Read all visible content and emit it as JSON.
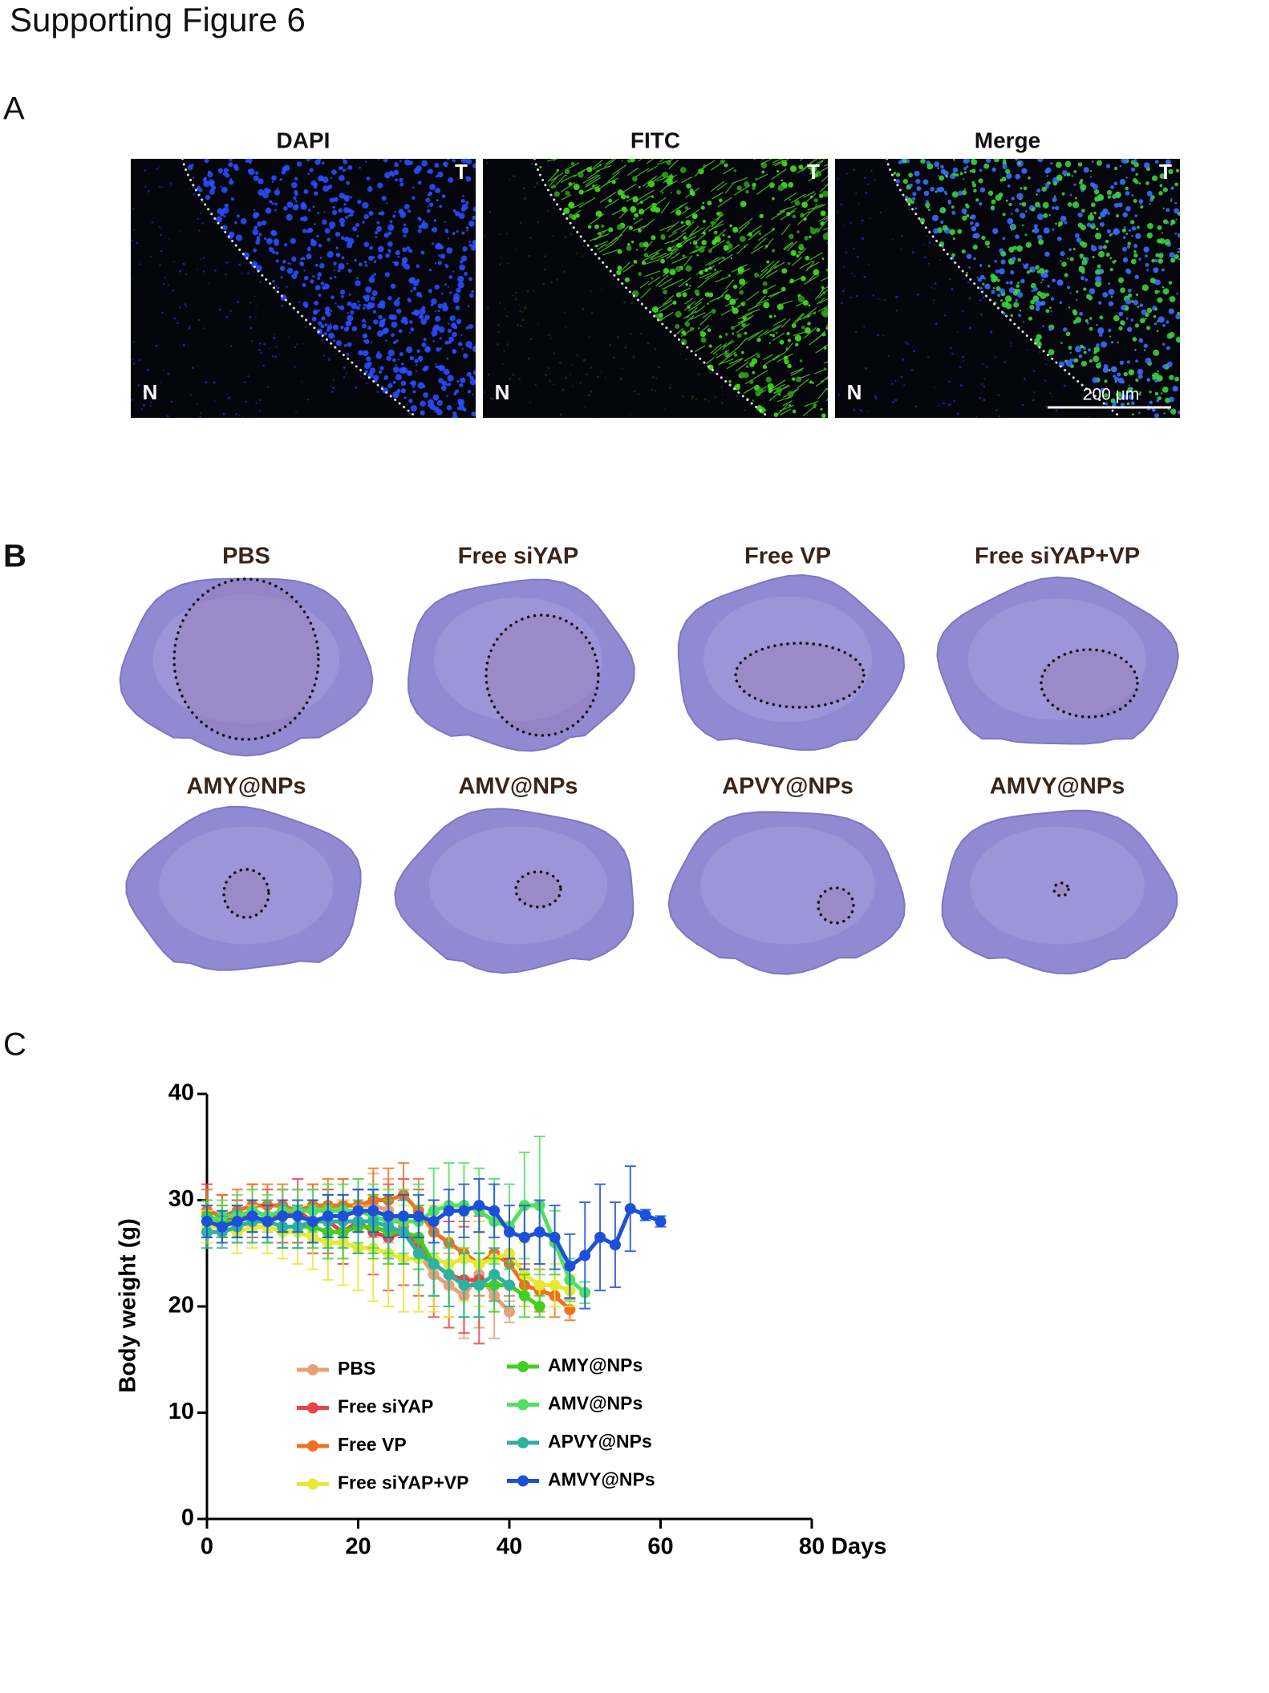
{
  "title": "Supporting Figure 6",
  "panel_labels": [
    "A",
    "B",
    "C"
  ],
  "panel_a": {
    "images": [
      {
        "title": "DAPI",
        "top_label": "T",
        "bottom_label": "N"
      },
      {
        "title": "FITC",
        "top_label": "T",
        "bottom_label": "N"
      },
      {
        "title": "Merge",
        "top_label": "T",
        "bottom_label": "N"
      }
    ],
    "scale_bar": "200 μm"
  },
  "panel_b": {
    "sections": [
      "PBS",
      "Free siYAP",
      "Free VP",
      "Free siYAP+VP",
      "AMY@NPs",
      "AMV@NPs",
      "APVY@NPs",
      "AMVY@NPs"
    ]
  },
  "chart_data": {
    "type": "line",
    "ylabel": "Body weight (g)",
    "xlabel": "Days",
    "xlim": [
      0,
      80
    ],
    "ylim": [
      0,
      40
    ],
    "xticks": [
      0,
      20,
      40,
      60,
      80
    ],
    "yticks": [
      0,
      10,
      20,
      30,
      40
    ],
    "series": [
      {
        "name": "PBS",
        "color": "#e8a07a",
        "x": [
          0,
          2,
          4,
          6,
          8,
          10,
          12,
          14,
          16,
          18,
          20,
          22,
          24,
          26,
          28,
          30,
          32,
          34,
          36,
          38,
          40
        ],
        "values": [
          28,
          28,
          28.5,
          29,
          28.5,
          29,
          29,
          29.5,
          29,
          29.5,
          29.5,
          29.5,
          29,
          27.5,
          25,
          23,
          22,
          21,
          23,
          21,
          19.5
        ],
        "errors": [
          1.5,
          1.5,
          1.5,
          2,
          1.5,
          2,
          2,
          2,
          2,
          2.5,
          2.5,
          3,
          3,
          3,
          3,
          3,
          3,
          4,
          5,
          4,
          1
        ]
      },
      {
        "name": "Free siYAP",
        "color": "#e8424a",
        "x": [
          0,
          2,
          4,
          6,
          8,
          10,
          12,
          14,
          16,
          18,
          20,
          22,
          24,
          26,
          28,
          30,
          32,
          34,
          36
        ],
        "values": [
          29,
          28.5,
          28,
          29,
          28.5,
          28.5,
          29,
          28,
          28,
          27,
          28,
          27,
          26.5,
          27,
          26,
          24,
          23,
          22.5,
          22.5
        ],
        "errors": [
          2.5,
          2,
          2,
          2.5,
          2.5,
          2.5,
          3,
          3,
          3,
          3,
          3,
          4,
          5,
          5,
          5,
          5,
          5,
          5,
          6
        ]
      },
      {
        "name": "Free VP",
        "color": "#f07020",
        "x": [
          0,
          2,
          4,
          6,
          8,
          10,
          12,
          14,
          16,
          18,
          20,
          22,
          24,
          26,
          28,
          30,
          32,
          34,
          36,
          38,
          40,
          42,
          44,
          46,
          48
        ],
        "values": [
          29,
          28.5,
          29,
          29.5,
          29.5,
          29.5,
          29,
          29.5,
          29.5,
          29.5,
          29.5,
          30,
          30,
          30.5,
          29,
          27,
          26,
          25,
          24,
          25,
          24,
          22,
          21.5,
          21,
          19.7
        ],
        "errors": [
          2,
          2,
          2,
          2,
          2,
          2,
          2,
          2,
          2.5,
          2.5,
          2.5,
          3,
          3,
          3,
          3,
          3,
          3,
          3,
          3,
          3,
          3,
          2,
          2,
          2,
          1
        ]
      },
      {
        "name": "Free siYAP+VP",
        "color": "#e8e830",
        "x": [
          0,
          2,
          4,
          6,
          8,
          10,
          12,
          14,
          16,
          18,
          20,
          22,
          24,
          26,
          28,
          30,
          32,
          34,
          36,
          38,
          40,
          42,
          44,
          46,
          48
        ],
        "values": [
          27.5,
          27.5,
          27,
          27.5,
          27.5,
          27,
          27,
          26.5,
          26,
          26,
          25.5,
          25.5,
          25,
          24.5,
          24.5,
          24.5,
          24,
          24.5,
          24,
          24.5,
          25,
          23,
          22,
          22,
          21.5
        ],
        "errors": [
          1.5,
          1.5,
          2,
          2,
          2.5,
          2.5,
          3,
          3,
          3.5,
          4,
          4,
          5,
          5,
          5,
          5,
          5,
          5,
          4,
          4,
          4,
          3,
          3,
          2,
          2,
          1.5
        ]
      },
      {
        "name": "AMY@NPs",
        "color": "#40d020",
        "x": [
          0,
          2,
          4,
          6,
          8,
          10,
          12,
          14,
          16,
          18,
          20,
          22,
          24,
          26,
          28,
          30,
          32,
          34,
          36,
          38,
          40,
          42,
          44
        ],
        "values": [
          28.5,
          28,
          28,
          28.5,
          28,
          27.5,
          27.5,
          27.5,
          27,
          27,
          27.5,
          27.5,
          27,
          27,
          26.5,
          24,
          23,
          22,
          22,
          22,
          22,
          21,
          20
        ],
        "errors": [
          1.5,
          1.5,
          1.5,
          1.5,
          2,
          2,
          2,
          2,
          2.5,
          2.5,
          2.5,
          3,
          3,
          3,
          3,
          3,
          3,
          3,
          3,
          2.5,
          2,
          2,
          1
        ]
      },
      {
        "name": "AMV@NPs",
        "color": "#50e060",
        "x": [
          0,
          2,
          4,
          6,
          8,
          10,
          12,
          14,
          16,
          18,
          20,
          22,
          24,
          26,
          28,
          30,
          32,
          34,
          36,
          38,
          40,
          42,
          44,
          46,
          48,
          50
        ],
        "values": [
          28,
          28.5,
          28.5,
          29,
          28.5,
          29,
          29,
          29,
          29,
          29,
          29,
          28.5,
          28,
          28,
          28,
          29,
          29.5,
          29.5,
          29,
          28,
          27.5,
          29.5,
          29.5,
          26,
          22.5,
          21.3
        ],
        "errors": [
          1.5,
          1.5,
          2,
          2,
          2,
          2,
          2,
          2,
          2.5,
          2.5,
          3,
          3,
          3,
          3,
          3.5,
          4,
          4,
          4,
          4,
          4,
          4,
          5,
          6.5,
          3,
          2,
          1
        ]
      },
      {
        "name": "APVY@NPs",
        "color": "#30b0a0",
        "x": [
          0,
          2,
          4,
          6,
          8,
          10,
          12,
          14,
          16,
          18,
          20,
          22,
          24,
          26,
          28,
          30,
          32,
          34,
          36,
          38,
          40
        ],
        "values": [
          27,
          27,
          27.5,
          28,
          28,
          27.5,
          27.5,
          28,
          28,
          28,
          28,
          28,
          27.5,
          27,
          25,
          24,
          23,
          22,
          22,
          23,
          22
        ],
        "errors": [
          1.5,
          1.5,
          1.5,
          2,
          2,
          2,
          2,
          2,
          2.5,
          2.5,
          3,
          3,
          3,
          3,
          3,
          3,
          3,
          3,
          3,
          2.5,
          2
        ]
      },
      {
        "name": "AMVY@NPs",
        "color": "#1c50d8",
        "x": [
          0,
          2,
          4,
          6,
          8,
          10,
          12,
          14,
          16,
          18,
          20,
          22,
          24,
          26,
          28,
          30,
          32,
          34,
          36,
          38,
          40,
          42,
          44,
          46,
          48,
          50,
          52,
          54,
          56,
          58,
          60
        ],
        "values": [
          28,
          27.5,
          28,
          28.5,
          28,
          28.5,
          28.5,
          28,
          28.5,
          28.5,
          29,
          29,
          28.5,
          28.5,
          28.5,
          28,
          29,
          29,
          29.5,
          29,
          27,
          26.5,
          27,
          26.5,
          23.8,
          24.8,
          26.5,
          25.8,
          29.2,
          28.6,
          28
        ],
        "errors": [
          1.5,
          1.5,
          1.5,
          1.5,
          1.5,
          1.5,
          1.5,
          2,
          2,
          2,
          2,
          2,
          2,
          2,
          2,
          2,
          2,
          2.5,
          2.5,
          2.5,
          2.5,
          3,
          3,
          3,
          3,
          5,
          5,
          4,
          4,
          0.5,
          0.5
        ]
      }
    ]
  }
}
